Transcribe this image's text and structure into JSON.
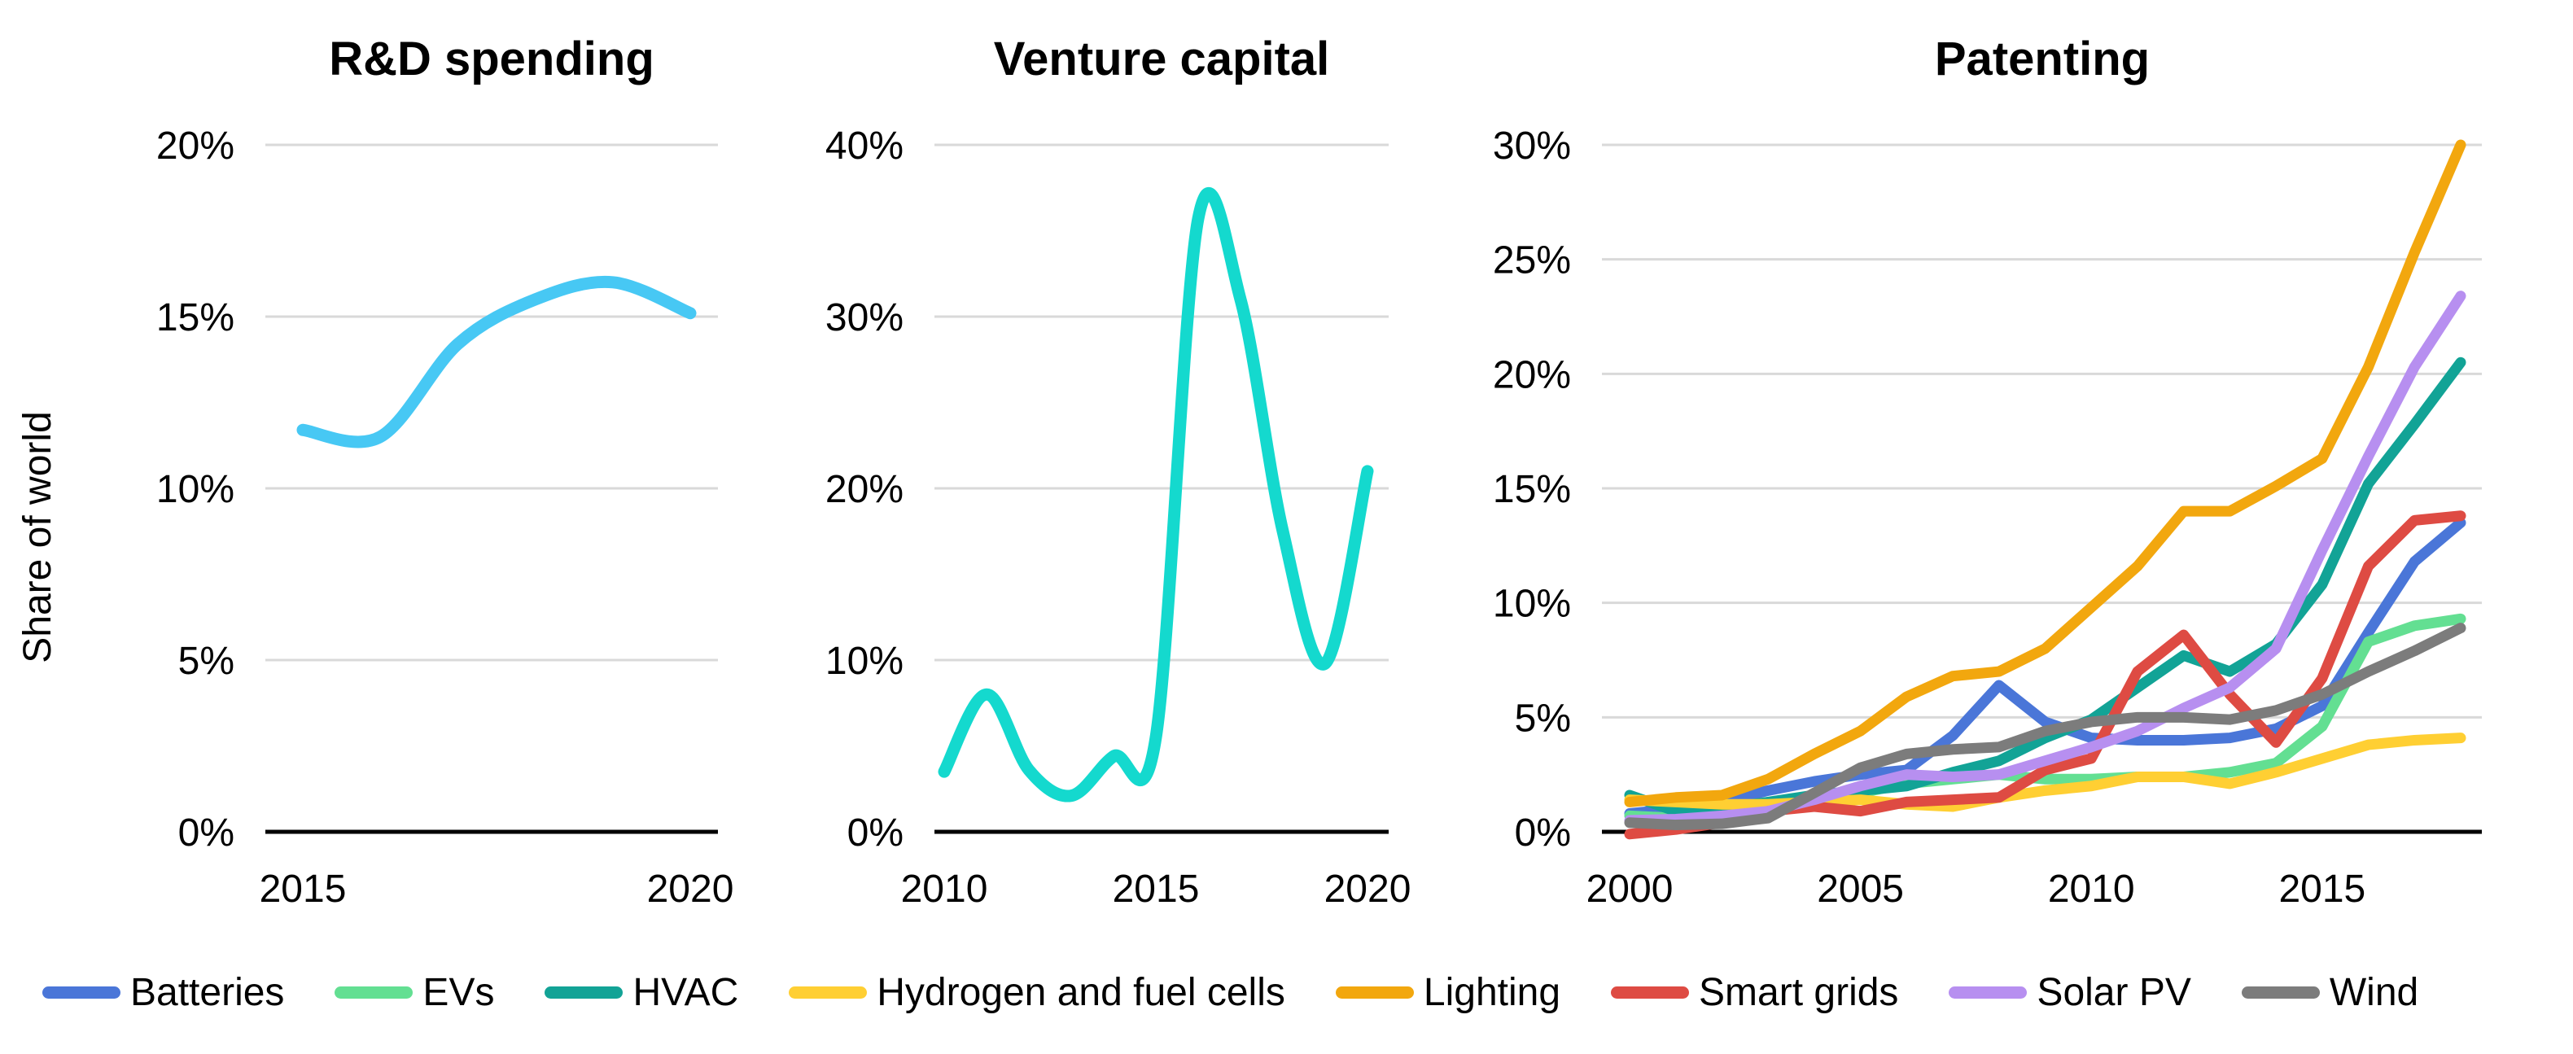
{
  "figure": {
    "shared_ylabel": "Share of world"
  },
  "legend": {
    "items": [
      {
        "label": "Batteries",
        "color": "#4A76D8"
      },
      {
        "label": "EVs",
        "color": "#63DF92"
      },
      {
        "label": "HVAC",
        "color": "#12A396"
      },
      {
        "label": "Hydrogen and fuel cells",
        "color": "#FFCF33"
      },
      {
        "label": "Lighting",
        "color": "#F2A70E"
      },
      {
        "label": "Smart grids",
        "color": "#DE4B43"
      },
      {
        "label": "Solar PV",
        "color": "#B78FF0"
      },
      {
        "label": "Wind",
        "color": "#7C7C7C"
      }
    ]
  },
  "chart_data": [
    {
      "type": "line",
      "title": "R&D spending",
      "ylabel": "Share of world",
      "smooth": true,
      "x": [
        2015,
        2016,
        2017,
        2018,
        2019,
        2020
      ],
      "xticks": [
        2015,
        2020
      ],
      "ylim": [
        0,
        20
      ],
      "yticks": [
        0,
        5,
        10,
        15,
        20
      ],
      "grid": true,
      "series": [
        {
          "color": "#47C8F4",
          "values": [
            11.7,
            11.5,
            14.2,
            15.5,
            16.0,
            15.1
          ]
        }
      ]
    },
    {
      "type": "line",
      "title": "Venture capital",
      "smooth": true,
      "x": [
        2010,
        2011,
        2012,
        2013,
        2014,
        2015,
        2016,
        2017,
        2018,
        2019,
        2020
      ],
      "xticks": [
        2010,
        2015,
        2020
      ],
      "ylim": [
        0,
        40
      ],
      "yticks": [
        0,
        10,
        20,
        30,
        40
      ],
      "grid": true,
      "series": [
        {
          "color": "#14D9CE",
          "values": [
            3.5,
            8.0,
            3.6,
            2.1,
            4.4,
            5.5,
            35.7,
            31.0,
            17.5,
            9.8,
            21.0
          ]
        }
      ]
    },
    {
      "type": "line",
      "title": "Patenting",
      "smooth": false,
      "x": [
        2000,
        2001,
        2002,
        2003,
        2004,
        2005,
        2006,
        2007,
        2008,
        2009,
        2010,
        2011,
        2012,
        2013,
        2014,
        2015,
        2016,
        2017,
        2018
      ],
      "xticks": [
        2000,
        2005,
        2010,
        2015
      ],
      "ylim": [
        0,
        30
      ],
      "yticks": [
        0,
        5,
        10,
        15,
        20,
        25,
        30
      ],
      "grid": true,
      "series": [
        {
          "name": "Batteries",
          "color": "#4A76D8",
          "values": [
            0.8,
            1.0,
            1.3,
            1.8,
            2.2,
            2.5,
            2.7,
            4.2,
            6.4,
            4.8,
            4.1,
            4.0,
            4.0,
            4.1,
            4.5,
            5.5,
            8.7,
            11.8,
            13.5
          ]
        },
        {
          "name": "EVs",
          "color": "#63DF92",
          "values": [
            0.7,
            0.6,
            0.7,
            0.9,
            1.3,
            1.7,
            2.1,
            2.3,
            2.5,
            2.3,
            2.3,
            2.4,
            2.4,
            2.6,
            3.0,
            4.6,
            8.3,
            9.0,
            9.3
          ]
        },
        {
          "name": "HVAC",
          "color": "#12A396",
          "values": [
            1.6,
            0.9,
            1.0,
            1.3,
            1.6,
            1.8,
            2.0,
            2.6,
            3.1,
            4.1,
            4.9,
            6.3,
            7.7,
            7.0,
            8.2,
            10.8,
            15.2,
            17.8,
            20.5
          ]
        },
        {
          "name": "Hydrogen and fuel cells",
          "color": "#FFCF33",
          "values": [
            1.4,
            1.3,
            1.2,
            1.2,
            1.3,
            1.4,
            1.2,
            1.1,
            1.5,
            1.8,
            2.0,
            2.4,
            2.4,
            2.1,
            2.6,
            3.2,
            3.8,
            4.0,
            4.1
          ]
        },
        {
          "name": "Lighting",
          "color": "#F2A70E",
          "values": [
            1.3,
            1.5,
            1.6,
            2.3,
            3.4,
            4.4,
            5.9,
            6.8,
            7.0,
            8.0,
            9.8,
            11.6,
            14.0,
            14.0,
            15.1,
            16.3,
            20.3,
            25.3,
            30.0
          ]
        },
        {
          "name": "Smart grids",
          "color": "#DE4B43",
          "values": [
            -0.1,
            0.1,
            0.4,
            0.9,
            1.1,
            0.9,
            1.3,
            1.4,
            1.5,
            2.7,
            3.2,
            7.0,
            8.6,
            6.0,
            3.9,
            6.7,
            11.6,
            13.6,
            13.8
          ]
        },
        {
          "name": "Solar PV",
          "color": "#B78FF0",
          "values": [
            0.5,
            0.55,
            0.7,
            0.9,
            1.4,
            2.0,
            2.5,
            2.4,
            2.5,
            3.1,
            3.7,
            4.4,
            5.4,
            6.3,
            8.0,
            12.3,
            16.4,
            20.3,
            23.4
          ]
        },
        {
          "name": "Wind",
          "color": "#7C7C7C",
          "values": [
            0.4,
            0.3,
            0.35,
            0.6,
            1.7,
            2.8,
            3.4,
            3.6,
            3.7,
            4.4,
            4.8,
            5.0,
            5.0,
            4.9,
            5.3,
            6.0,
            7.0,
            7.9,
            8.9
          ]
        }
      ]
    }
  ]
}
